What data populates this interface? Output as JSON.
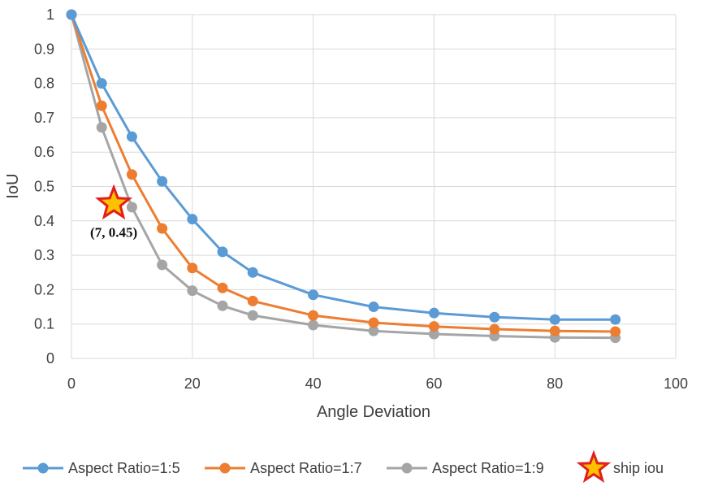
{
  "chart_data": {
    "type": "line",
    "title": "",
    "xlabel": "Angle Deviation",
    "ylabel": "IoU",
    "xlim": [
      0,
      100
    ],
    "ylim": [
      0,
      1
    ],
    "x_ticks": [
      "0",
      "20",
      "40",
      "60",
      "80",
      "100"
    ],
    "y_ticks": [
      "0",
      "0.1",
      "0.2",
      "0.3",
      "0.4",
      "0.5",
      "0.6",
      "0.7",
      "0.8",
      "0.9",
      "1"
    ],
    "grid": true,
    "legend_position": "bottom",
    "x": [
      0,
      5,
      10,
      15,
      20,
      25,
      30,
      40,
      50,
      60,
      70,
      80,
      90
    ],
    "series": [
      {
        "name": "Aspect Ratio=1:5",
        "color": "#5b9bd5",
        "values": [
          1.0,
          0.8,
          0.645,
          0.515,
          0.405,
          0.31,
          0.25,
          0.185,
          0.15,
          0.132,
          0.12,
          0.113,
          0.113
        ]
      },
      {
        "name": "Aspect Ratio=1:7",
        "color": "#ed7d31",
        "values": [
          1.0,
          0.735,
          0.535,
          0.378,
          0.263,
          0.205,
          0.167,
          0.125,
          0.104,
          0.093,
          0.085,
          0.08,
          0.078
        ]
      },
      {
        "name": "Aspect Ratio=1:9",
        "color": "#a5a5a5",
        "values": [
          1.0,
          0.672,
          0.44,
          0.272,
          0.197,
          0.153,
          0.125,
          0.097,
          0.08,
          0.071,
          0.065,
          0.061,
          0.06
        ]
      }
    ],
    "highlight": {
      "name": "ship iou",
      "x": 7,
      "y": 0.45,
      "label": "(7, 0.45)",
      "fill_color": "#ffc000",
      "stroke_color": "#e0201c"
    }
  }
}
